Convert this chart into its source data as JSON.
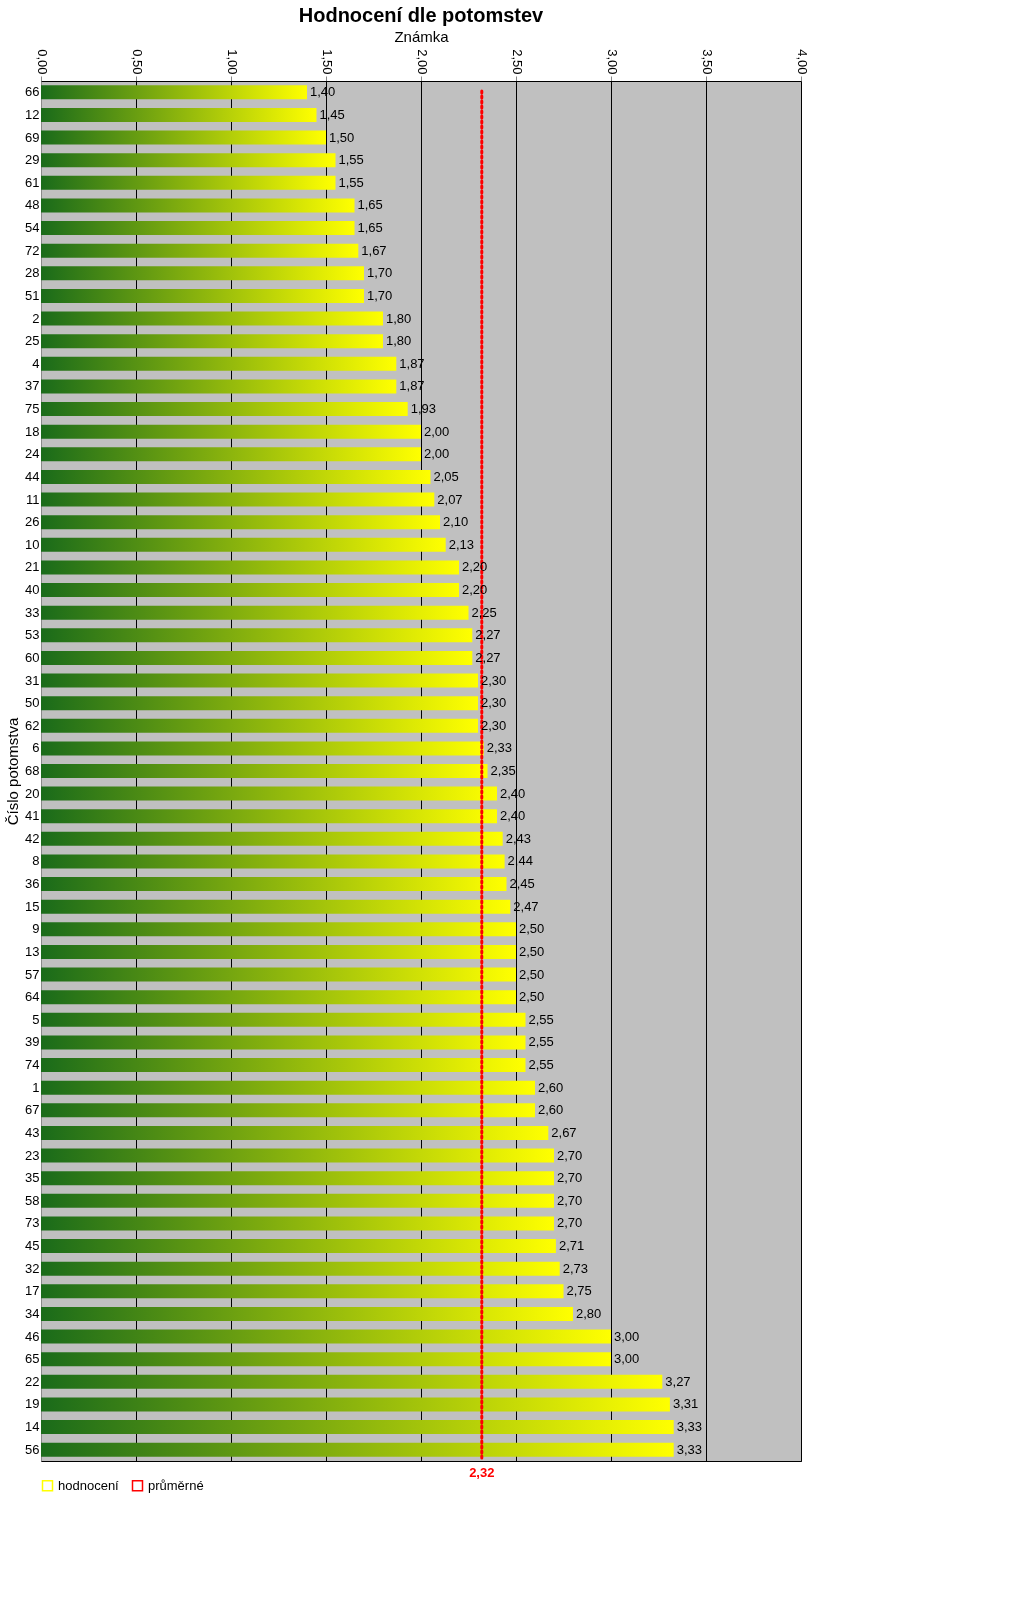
{
  "chart_data": {
    "type": "bar",
    "orientation": "horizontal",
    "title": "Hodnocení dle potomstev",
    "xlabel": "Známka",
    "ylabel": "Číslo potomstva",
    "categories": [
      "66",
      "12",
      "69",
      "29",
      "61",
      "48",
      "54",
      "72",
      "28",
      "51",
      "2",
      "25",
      "4",
      "37",
      "75",
      "18",
      "24",
      "44",
      "11",
      "26",
      "10",
      "21",
      "40",
      "33",
      "53",
      "60",
      "31",
      "50",
      "62",
      "6",
      "68",
      "20",
      "41",
      "42",
      "8",
      "36",
      "15",
      "9",
      "13",
      "57",
      "64",
      "5",
      "39",
      "74",
      "1",
      "67",
      "43",
      "23",
      "35",
      "58",
      "73",
      "45",
      "32",
      "17",
      "34",
      "46",
      "65",
      "22",
      "19",
      "14",
      "56"
    ],
    "series": [
      {
        "name": "hodnocení",
        "color": "#ffff00",
        "values": [
          1.4,
          1.45,
          1.5,
          1.55,
          1.55,
          1.65,
          1.65,
          1.67,
          1.7,
          1.7,
          1.8,
          1.8,
          1.87,
          1.87,
          1.93,
          2.0,
          2.0,
          2.05,
          2.07,
          2.1,
          2.13,
          2.2,
          2.2,
          2.25,
          2.27,
          2.27,
          2.3,
          2.3,
          2.3,
          2.33,
          2.35,
          2.4,
          2.4,
          2.43,
          2.44,
          2.45,
          2.47,
          2.5,
          2.5,
          2.5,
          2.5,
          2.55,
          2.55,
          2.55,
          2.6,
          2.6,
          2.67,
          2.7,
          2.7,
          2.7,
          2.7,
          2.71,
          2.73,
          2.75,
          2.8,
          3.0,
          3.0,
          3.27,
          3.31,
          3.33,
          3.33
        ],
        "value_labels": [
          "1,40",
          "1,45",
          "1,50",
          "1,55",
          "1,55",
          "1,65",
          "1,65",
          "1,67",
          "1,70",
          "1,70",
          "1,80",
          "1,80",
          "1,87",
          "1,87",
          "1,93",
          "2,00",
          "2,00",
          "2,05",
          "2,07",
          "2,10",
          "2,13",
          "2,20",
          "2,20",
          "2,25",
          "2,27",
          "2,27",
          "2,30",
          "2,30",
          "2,30",
          "2,33",
          "2,35",
          "2,40",
          "2,40",
          "2,43",
          "2,44",
          "2,45",
          "2,47",
          "2,50",
          "2,50",
          "2,50",
          "2,50",
          "2,55",
          "2,55",
          "2,55",
          "2,60",
          "2,60",
          "2,67",
          "2,70",
          "2,70",
          "2,70",
          "2,70",
          "2,71",
          "2,73",
          "2,75",
          "2,80",
          "3,00",
          "3,00",
          "3,27",
          "3,31",
          "3,33",
          "3,33"
        ]
      }
    ],
    "xlim": [
      0,
      4
    ],
    "xticks": [
      {
        "value": 0,
        "label": "0,00"
      },
      {
        "value": 0.5,
        "label": "0,50"
      },
      {
        "value": 1,
        "label": "1,00"
      },
      {
        "value": 1.5,
        "label": "1,50"
      },
      {
        "value": 2,
        "label": "2,00"
      },
      {
        "value": 2.5,
        "label": "2,50"
      },
      {
        "value": 3,
        "label": "3,00"
      },
      {
        "value": 3.5,
        "label": "3,50"
      },
      {
        "value": 4,
        "label": "4,00"
      }
    ],
    "ref_lines": [
      {
        "axis": "x",
        "value": 2.32,
        "label": "2,32",
        "color": "#ff0000",
        "line_style": "dotted"
      }
    ],
    "annotations": [
      "průměrné"
    ],
    "grid": "x",
    "legend": "bottom"
  }
}
